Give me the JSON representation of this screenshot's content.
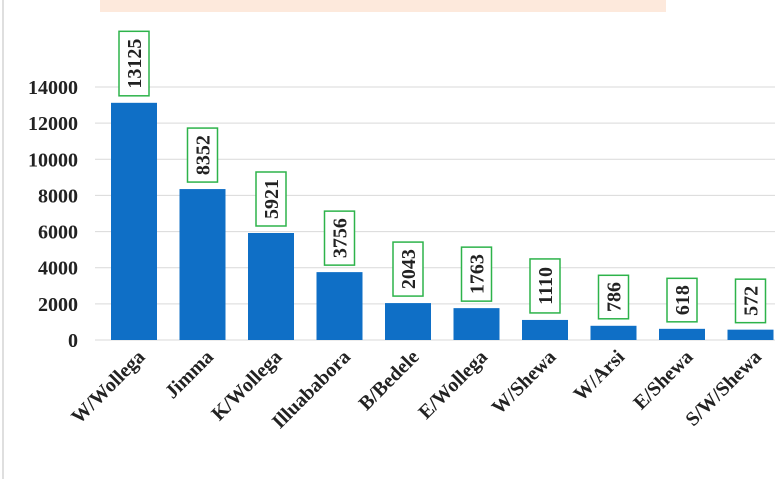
{
  "chart_data": {
    "type": "bar",
    "categories": [
      "W/Wollega",
      "Jimma",
      "K/Wollega",
      "Illuababora",
      "B/Bedele",
      "E/Wollega",
      "W/Shewa",
      "W/Arsi",
      "E/Shewa",
      "S/W/Shewa"
    ],
    "values": [
      13125,
      8352,
      5921,
      3756,
      2043,
      1763,
      1110,
      786,
      618,
      572
    ],
    "color": "#0f6fc6",
    "label_box_color": "#2db34a",
    "ylim": [
      0,
      14000
    ],
    "yticks": [
      0,
      2000,
      4000,
      6000,
      8000,
      10000,
      12000,
      14000
    ],
    "grid": true
  }
}
